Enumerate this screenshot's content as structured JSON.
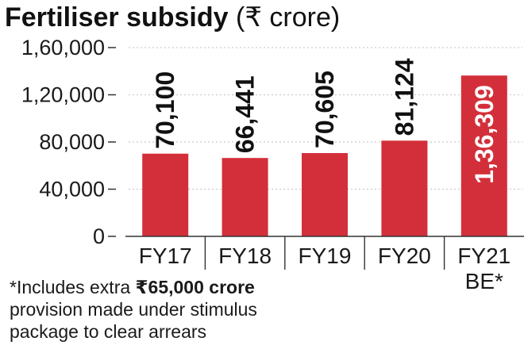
{
  "chart_data": {
    "type": "bar",
    "title": "Fertiliser subsidy",
    "subtitle": "(₹ crore)",
    "categories": [
      "FY17",
      "FY18",
      "FY19",
      "FY20",
      "FY21"
    ],
    "category_sublabels": [
      "",
      "",
      "",
      "",
      "BE*"
    ],
    "values": [
      70100,
      66441,
      70605,
      81124,
      136309
    ],
    "value_labels": [
      "70,100",
      "66,441",
      "70,605",
      "81,124",
      "1,36,309"
    ],
    "yticks": [
      0,
      40000,
      80000,
      120000,
      160000
    ],
    "ytick_labels": [
      "0",
      "40,000",
      "80,000",
      "1,20,000",
      "1,60,000"
    ],
    "ylim": [
      0,
      160000
    ],
    "grid": true,
    "xlabel": "",
    "ylabel": "",
    "colors": {
      "bar": "#d32f3a",
      "label_on_white": "#111111",
      "label_on_bar": "#ffffff",
      "grid": "#cccccc",
      "axis": "#333333"
    }
  },
  "footnote": {
    "prefix": "*Includes extra ",
    "emphasis": "₹65,000 crore",
    "line1_rest": "",
    "line2": "provision made under stimulus",
    "line3": "package to clear arrears"
  }
}
